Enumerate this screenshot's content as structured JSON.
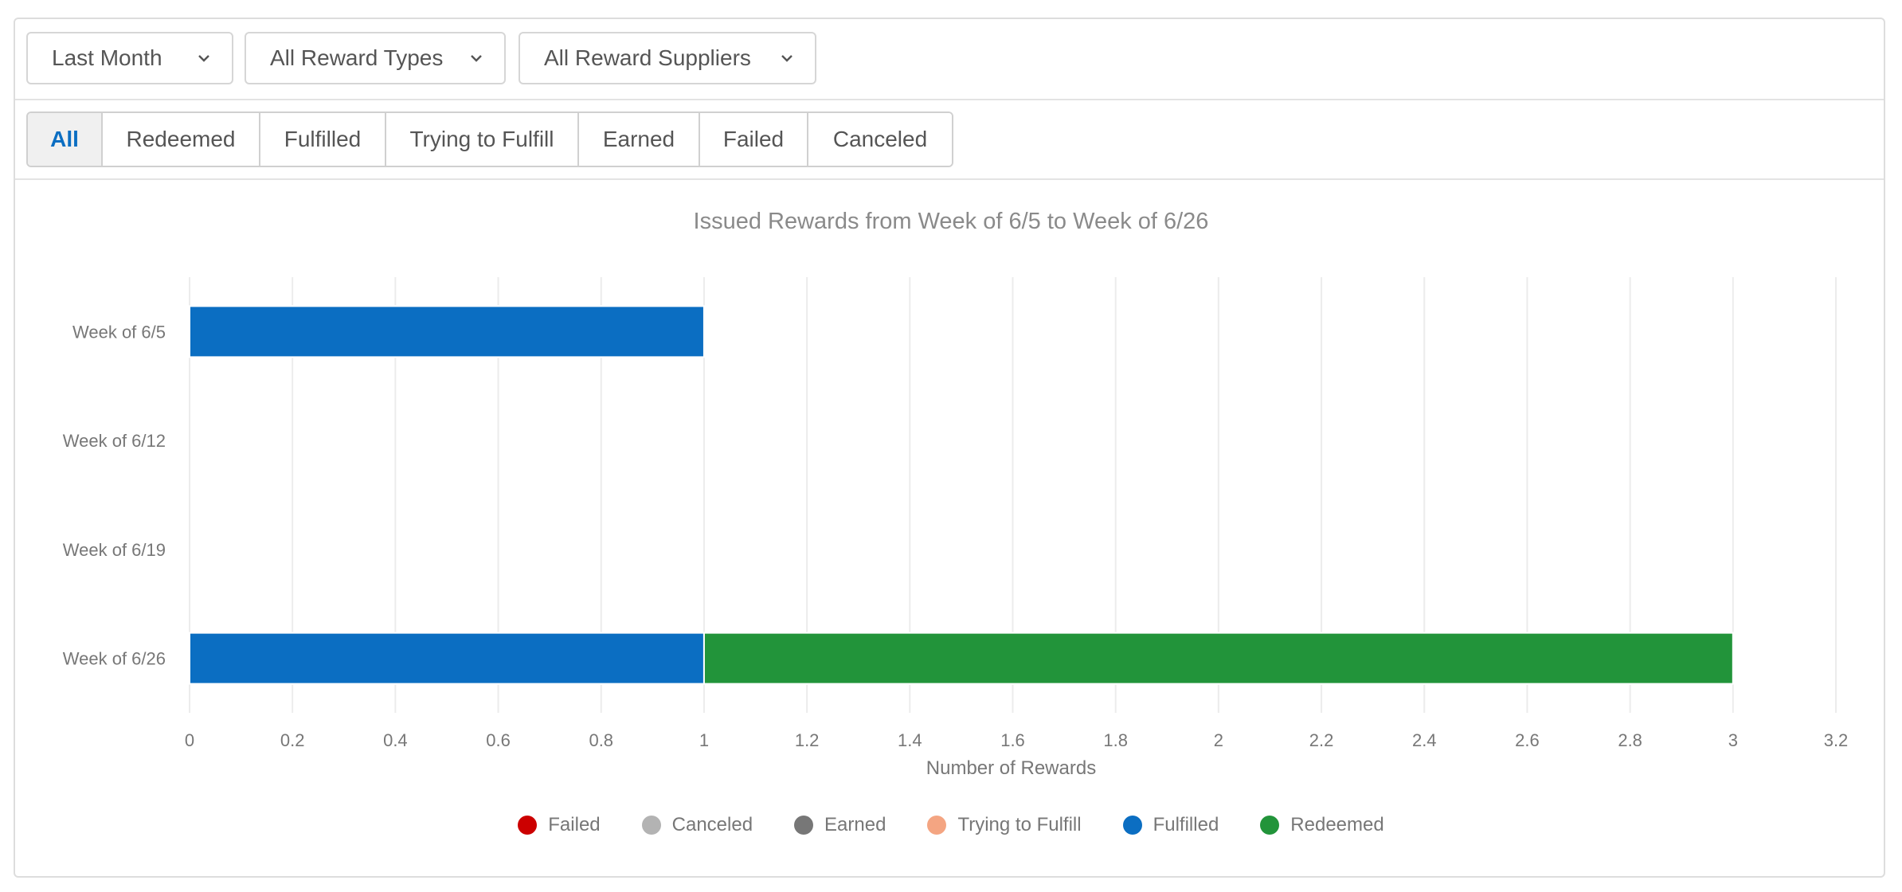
{
  "filters": {
    "period": "Last Month",
    "reward_types": "All Reward Types",
    "reward_suppliers": "All Reward Suppliers"
  },
  "tabs": [
    "All",
    "Redeemed",
    "Fulfilled",
    "Trying to Fulfill",
    "Earned",
    "Failed",
    "Canceled"
  ],
  "active_tab": "All",
  "colors": {
    "Failed": "#cc0000",
    "Canceled": "#b3b3b3",
    "Earned": "#777777",
    "Trying to Fulfill": "#f4a582",
    "Fulfilled": "#0b6ec2",
    "Redeemed": "#22943a",
    "accent": "#0b6ec2"
  },
  "chart_data": {
    "type": "bar",
    "orientation": "horizontal",
    "stacked": true,
    "title": "Issued Rewards from Week of 6/5 to Week of 6/26",
    "xlabel": "Number of Rewards",
    "ylabel": "",
    "categories": [
      "Week of 6/5",
      "Week of 6/12",
      "Week of 6/19",
      "Week of 6/26"
    ],
    "xlim": [
      0,
      3.2
    ],
    "x_ticks": [
      "0",
      "0.2",
      "0.4",
      "0.6",
      "0.8",
      "1",
      "1.2",
      "1.4",
      "1.6",
      "1.8",
      "2",
      "2.2",
      "2.4",
      "2.6",
      "2.8",
      "3",
      "3.2"
    ],
    "grid": "vertical",
    "legend_placement": "bottom",
    "series": [
      {
        "name": "Failed",
        "values": [
          0,
          0,
          0,
          0
        ]
      },
      {
        "name": "Canceled",
        "values": [
          0,
          0,
          0,
          0
        ]
      },
      {
        "name": "Earned",
        "values": [
          0,
          0,
          0,
          0
        ]
      },
      {
        "name": "Trying to Fulfill",
        "values": [
          0,
          0,
          0,
          0
        ]
      },
      {
        "name": "Fulfilled",
        "values": [
          1,
          0,
          0,
          1
        ]
      },
      {
        "name": "Redeemed",
        "values": [
          0,
          0,
          0,
          2
        ]
      }
    ]
  }
}
